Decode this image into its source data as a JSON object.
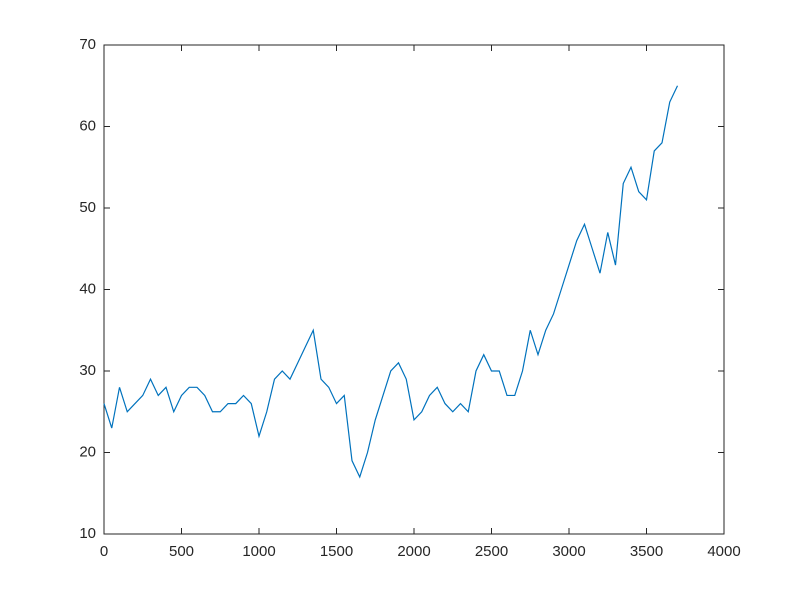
{
  "chart_data": {
    "type": "line",
    "x": [
      0,
      50,
      100,
      150,
      200,
      250,
      300,
      350,
      400,
      450,
      500,
      550,
      600,
      650,
      700,
      750,
      800,
      850,
      900,
      950,
      1000,
      1050,
      1100,
      1150,
      1200,
      1250,
      1300,
      1350,
      1400,
      1450,
      1500,
      1550,
      1600,
      1650,
      1700,
      1750,
      1800,
      1850,
      1900,
      1950,
      2000,
      2050,
      2100,
      2150,
      2200,
      2250,
      2300,
      2350,
      2400,
      2450,
      2500,
      2550,
      2600,
      2650,
      2700,
      2750,
      2800,
      2850,
      2900,
      2950,
      3000,
      3050,
      3100,
      3150,
      3200,
      3250,
      3300,
      3350,
      3400,
      3450,
      3500,
      3550,
      3600,
      3650,
      3700
    ],
    "series": [
      {
        "color": "#0072bd",
        "values": [
          26,
          23,
          28,
          25,
          26,
          27,
          29,
          27,
          28,
          25,
          27,
          28,
          28,
          27,
          25,
          25,
          26,
          26,
          27,
          26,
          22,
          25,
          29,
          30,
          29,
          31,
          33,
          35,
          29,
          28,
          26,
          27,
          19,
          17,
          20,
          24,
          27,
          30,
          31,
          29,
          24,
          25,
          27,
          28,
          26,
          25,
          26,
          25,
          30,
          32,
          30,
          30,
          27,
          27,
          30,
          35,
          32,
          35,
          37,
          40,
          43,
          46,
          48,
          45,
          42,
          47,
          43,
          53,
          55,
          52,
          51,
          57,
          58,
          63,
          65
        ]
      }
    ],
    "xlim": [
      0,
      4000
    ],
    "xticks": [
      0,
      500,
      1000,
      1500,
      2000,
      2500,
      3000,
      3500,
      4000
    ],
    "ylim": [
      10,
      70
    ],
    "yticks": [
      10,
      20,
      30,
      40,
      50,
      60,
      70
    ],
    "grid": false
  }
}
